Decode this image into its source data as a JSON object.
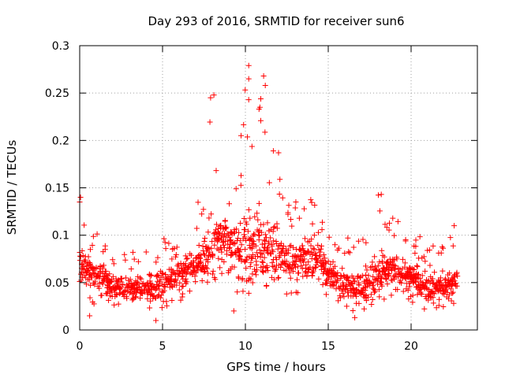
{
  "chart_data": {
    "type": "scatter",
    "title": "Day 293 of 2016, SRMTID for receiver sun6",
    "xlabel": "GPS time / hours",
    "ylabel": "SRMTID / TECUs",
    "xlim": [
      0,
      24
    ],
    "ylim": [
      0,
      0.3
    ],
    "xticks": [
      0,
      5,
      10,
      15,
      20
    ],
    "xtick_labels": [
      "0",
      "5",
      "10",
      "15",
      "20"
    ],
    "yticks": [
      0,
      0.05,
      0.1,
      0.15,
      0.2,
      0.25,
      0.3
    ],
    "ytick_labels": [
      "0",
      "0.05",
      "0.1",
      "0.15",
      "0.2",
      "0.25",
      "0.3"
    ],
    "grid": true,
    "marker": "+",
    "color": "#ff0000",
    "series": [
      {
        "name": "SRMTID",
        "envelope_hours": [
          0,
          0.5,
          1,
          1.5,
          2,
          2.5,
          3,
          3.5,
          4,
          4.5,
          5,
          5.5,
          6,
          6.5,
          7,
          7.5,
          8,
          8.5,
          9,
          9.5,
          10,
          10.5,
          11,
          11.5,
          12,
          12.5,
          13,
          13.5,
          14,
          14.5,
          15,
          15.5,
          16,
          16.5,
          17,
          17.5,
          18,
          18.5,
          19,
          19.5,
          20,
          20.5,
          21,
          21.5,
          22,
          22.5,
          22.8
        ],
        "typical": [
          0.07,
          0.065,
          0.06,
          0.055,
          0.045,
          0.045,
          0.045,
          0.045,
          0.045,
          0.045,
          0.05,
          0.055,
          0.06,
          0.065,
          0.07,
          0.075,
          0.09,
          0.1,
          0.09,
          0.085,
          0.09,
          0.09,
          0.09,
          0.085,
          0.08,
          0.075,
          0.07,
          0.075,
          0.08,
          0.075,
          0.06,
          0.055,
          0.05,
          0.045,
          0.045,
          0.05,
          0.055,
          0.06,
          0.06,
          0.06,
          0.055,
          0.05,
          0.045,
          0.045,
          0.045,
          0.05,
          0.05
        ],
        "low": [
          0.03,
          0.03,
          0.025,
          0.025,
          0.025,
          0.025,
          0.02,
          0.02,
          0.02,
          0.02,
          0.02,
          0.025,
          0.03,
          0.035,
          0.04,
          0.045,
          0.05,
          0.05,
          0.04,
          0.035,
          0.035,
          0.035,
          0.04,
          0.04,
          0.035,
          0.035,
          0.035,
          0.035,
          0.035,
          0.03,
          0.025,
          0.025,
          0.02,
          0.02,
          0.02,
          0.025,
          0.03,
          0.03,
          0.03,
          0.03,
          0.025,
          0.025,
          0.02,
          0.02,
          0.025,
          0.025,
          0.025
        ],
        "high": [
          0.135,
          0.1,
          0.105,
          0.09,
          0.08,
          0.08,
          0.08,
          0.085,
          0.085,
          0.09,
          0.1,
          0.09,
          0.1,
          0.11,
          0.13,
          0.16,
          0.245,
          0.2,
          0.17,
          0.16,
          0.28,
          0.22,
          0.27,
          0.2,
          0.185,
          0.14,
          0.14,
          0.135,
          0.14,
          0.12,
          0.1,
          0.1,
          0.1,
          0.105,
          0.11,
          0.13,
          0.145,
          0.13,
          0.12,
          0.11,
          0.105,
          0.1,
          0.09,
          0.09,
          0.095,
          0.105,
          0.11
        ]
      }
    ],
    "notable_points": [
      {
        "x": 0.0,
        "y": 0.135
      },
      {
        "x": 0.05,
        "y": 0.14
      },
      {
        "x": 0.6,
        "y": 0.015
      },
      {
        "x": 4.6,
        "y": 0.01
      },
      {
        "x": 7.9,
        "y": 0.245
      },
      {
        "x": 8.1,
        "y": 0.248
      },
      {
        "x": 9.3,
        "y": 0.02
      },
      {
        "x": 10.2,
        "y": 0.279
      },
      {
        "x": 10.2,
        "y": 0.265
      },
      {
        "x": 10.2,
        "y": 0.243
      },
      {
        "x": 11.1,
        "y": 0.268
      },
      {
        "x": 11.2,
        "y": 0.258
      },
      {
        "x": 12.0,
        "y": 0.187
      },
      {
        "x": 16.6,
        "y": 0.013
      },
      {
        "x": 18.2,
        "y": 0.143
      },
      {
        "x": 22.6,
        "y": 0.11
      }
    ]
  }
}
